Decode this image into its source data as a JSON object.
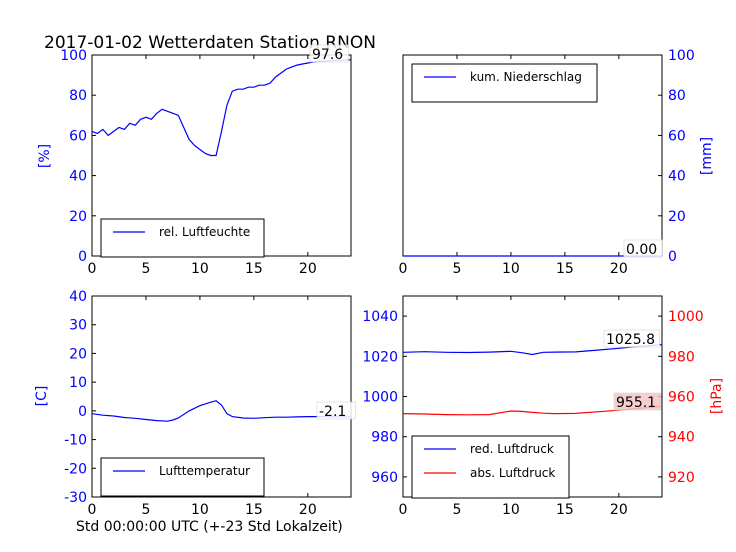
{
  "title": "2017-01-02 Wetterdaten Station RNON",
  "footer_xlabel": "Std 00:00:00 UTC (+-23 Std Lokalzeit)",
  "colors": {
    "blue": "#0000ff",
    "red": "#ff0000",
    "label_bg": "#f4c6c6"
  },
  "chart_data": [
    {
      "type": "line",
      "ylabel": "[%]",
      "xlim": [
        0,
        24
      ],
      "ylim": [
        0,
        100
      ],
      "xticks": [
        "0",
        "5",
        "10",
        "15",
        "20"
      ],
      "yticks": [
        "0",
        "20",
        "40",
        "60",
        "80",
        "100"
      ],
      "legend": "rel. Luftfeuchte",
      "legend_position": "lower-left",
      "last_value_label": "97.6",
      "series": [
        {
          "name": "rel. Luftfeuchte",
          "color": "#0000ff",
          "x": [
            0,
            0.5,
            1,
            1.5,
            2,
            2.5,
            3,
            3.5,
            4,
            4.5,
            5,
            5.5,
            6,
            6.5,
            7,
            7.5,
            8,
            8.5,
            9,
            9.5,
            10,
            10.5,
            11,
            11.5,
            12,
            12.5,
            13,
            13.5,
            14,
            14.5,
            15,
            15.5,
            16,
            16.5,
            17,
            17.5,
            18,
            18.5,
            19,
            19.5,
            20,
            20.5,
            21,
            21.5,
            22,
            22.5,
            23,
            23.5,
            24
          ],
          "y": [
            62,
            61,
            63,
            60,
            62,
            64,
            63,
            66,
            65,
            68,
            69,
            68,
            71,
            73,
            72,
            71,
            70,
            64,
            58,
            55,
            53,
            51,
            50,
            50,
            62,
            75,
            82,
            83,
            83,
            84,
            84,
            85,
            85,
            86,
            89,
            91,
            93,
            94,
            95,
            95.5,
            96,
            96.5,
            96.8,
            97,
            97.2,
            97.3,
            97.4,
            97.5,
            97.6
          ]
        }
      ]
    },
    {
      "type": "line",
      "ylabel": "[mm]",
      "xlim": [
        0,
        24
      ],
      "ylim": [
        0,
        100
      ],
      "xticks": [
        "0",
        "5",
        "10",
        "15",
        "20"
      ],
      "yticks": [
        "0",
        "20",
        "40",
        "60",
        "80",
        "100"
      ],
      "legend": "kum. Niederschlag",
      "legend_position": "upper-left",
      "last_value_label": "0.00",
      "series": [
        {
          "name": "kum. Niederschlag",
          "color": "#0000ff",
          "x": [
            0,
            24
          ],
          "y": [
            0,
            0
          ]
        }
      ]
    },
    {
      "type": "line",
      "ylabel": "[C]",
      "xlim": [
        0,
        24
      ],
      "ylim": [
        -30,
        40
      ],
      "xticks": [
        "0",
        "5",
        "10",
        "15",
        "20"
      ],
      "yticks": [
        "-30",
        "-20",
        "-10",
        "0",
        "10",
        "20",
        "30",
        "40"
      ],
      "legend": "Lufttemperatur",
      "legend_position": "lower-left",
      "last_value_label": "-2.1",
      "series": [
        {
          "name": "Lufttemperatur",
          "color": "#0000ff",
          "x": [
            0,
            1,
            2,
            3,
            4,
            5,
            6,
            7,
            7.5,
            8,
            9,
            10,
            11,
            11.5,
            12,
            12.5,
            13,
            14,
            15,
            16,
            17,
            18,
            19,
            20,
            21,
            22,
            23,
            24
          ],
          "y": [
            -1,
            -1.5,
            -1.8,
            -2.3,
            -2.6,
            -3,
            -3.4,
            -3.6,
            -3.2,
            -2.5,
            0,
            1.8,
            3,
            3.5,
            2,
            -1,
            -2,
            -2.5,
            -2.6,
            -2.4,
            -2.2,
            -2.2,
            -2.1,
            -2,
            -2,
            -2,
            -2.1,
            -2.1
          ]
        }
      ]
    },
    {
      "type": "line",
      "ylabel": "[hPa]",
      "xlim": [
        0,
        24
      ],
      "ylim_left": [
        950,
        1050
      ],
      "ylim_right": [
        910,
        1010
      ],
      "xticks": [
        "0",
        "5",
        "10",
        "15",
        "20"
      ],
      "yticks_left": [
        "960",
        "980",
        "1000",
        "1020",
        "1040"
      ],
      "yticks_right": [
        "920",
        "940",
        "960",
        "980",
        "1000"
      ],
      "legend_position": "lower-left",
      "series": [
        {
          "name": "red. Luftdruck",
          "axis": "left",
          "color": "#0000ff",
          "last_value_label": "1025.8",
          "x": [
            0,
            2,
            4,
            6,
            8,
            10,
            11,
            12,
            13,
            14,
            16,
            18,
            20,
            22,
            24
          ],
          "y": [
            1022,
            1022.3,
            1022,
            1021.9,
            1022.1,
            1022.5,
            1021.8,
            1020.9,
            1022,
            1022.1,
            1022.2,
            1023.1,
            1024,
            1025,
            1025.8
          ]
        },
        {
          "name": "abs. Luftdruck",
          "axis": "right",
          "color": "#ff0000",
          "last_value_label": "955.1",
          "x": [
            0,
            2,
            4,
            6,
            8,
            10,
            11,
            12,
            13,
            14,
            16,
            18,
            20,
            22,
            24
          ],
          "y": [
            951.5,
            951.3,
            951,
            950.9,
            951,
            952.8,
            952.6,
            952.1,
            951.7,
            951.5,
            951.6,
            952.4,
            953.2,
            954.2,
            955.1
          ]
        }
      ]
    }
  ]
}
